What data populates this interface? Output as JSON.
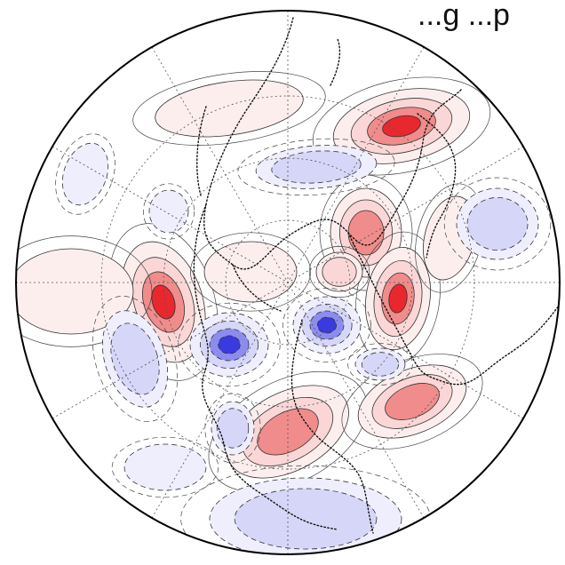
{
  "title": "...g ...p",
  "projection": "north-polar-stereographic",
  "palette": {
    "positive_strong": "#e8282e",
    "positive_mid": "#f08c8c",
    "positive_weak": "#fad6d6",
    "positive_faint": "#fdeeee",
    "negative_strong": "#3a3ae0",
    "negative_mid": "#8c8cee",
    "negative_weak": "#d6d6f8",
    "negative_faint": "#eeeefc",
    "positive_contour": "#333333",
    "negative_contour": "#333333",
    "coastline": "#111111",
    "graticule": "#555555",
    "boundary": "#000000",
    "background": "#ffffff"
  },
  "contours": {
    "positive_style": "solid",
    "negative_style": "dashed"
  }
}
